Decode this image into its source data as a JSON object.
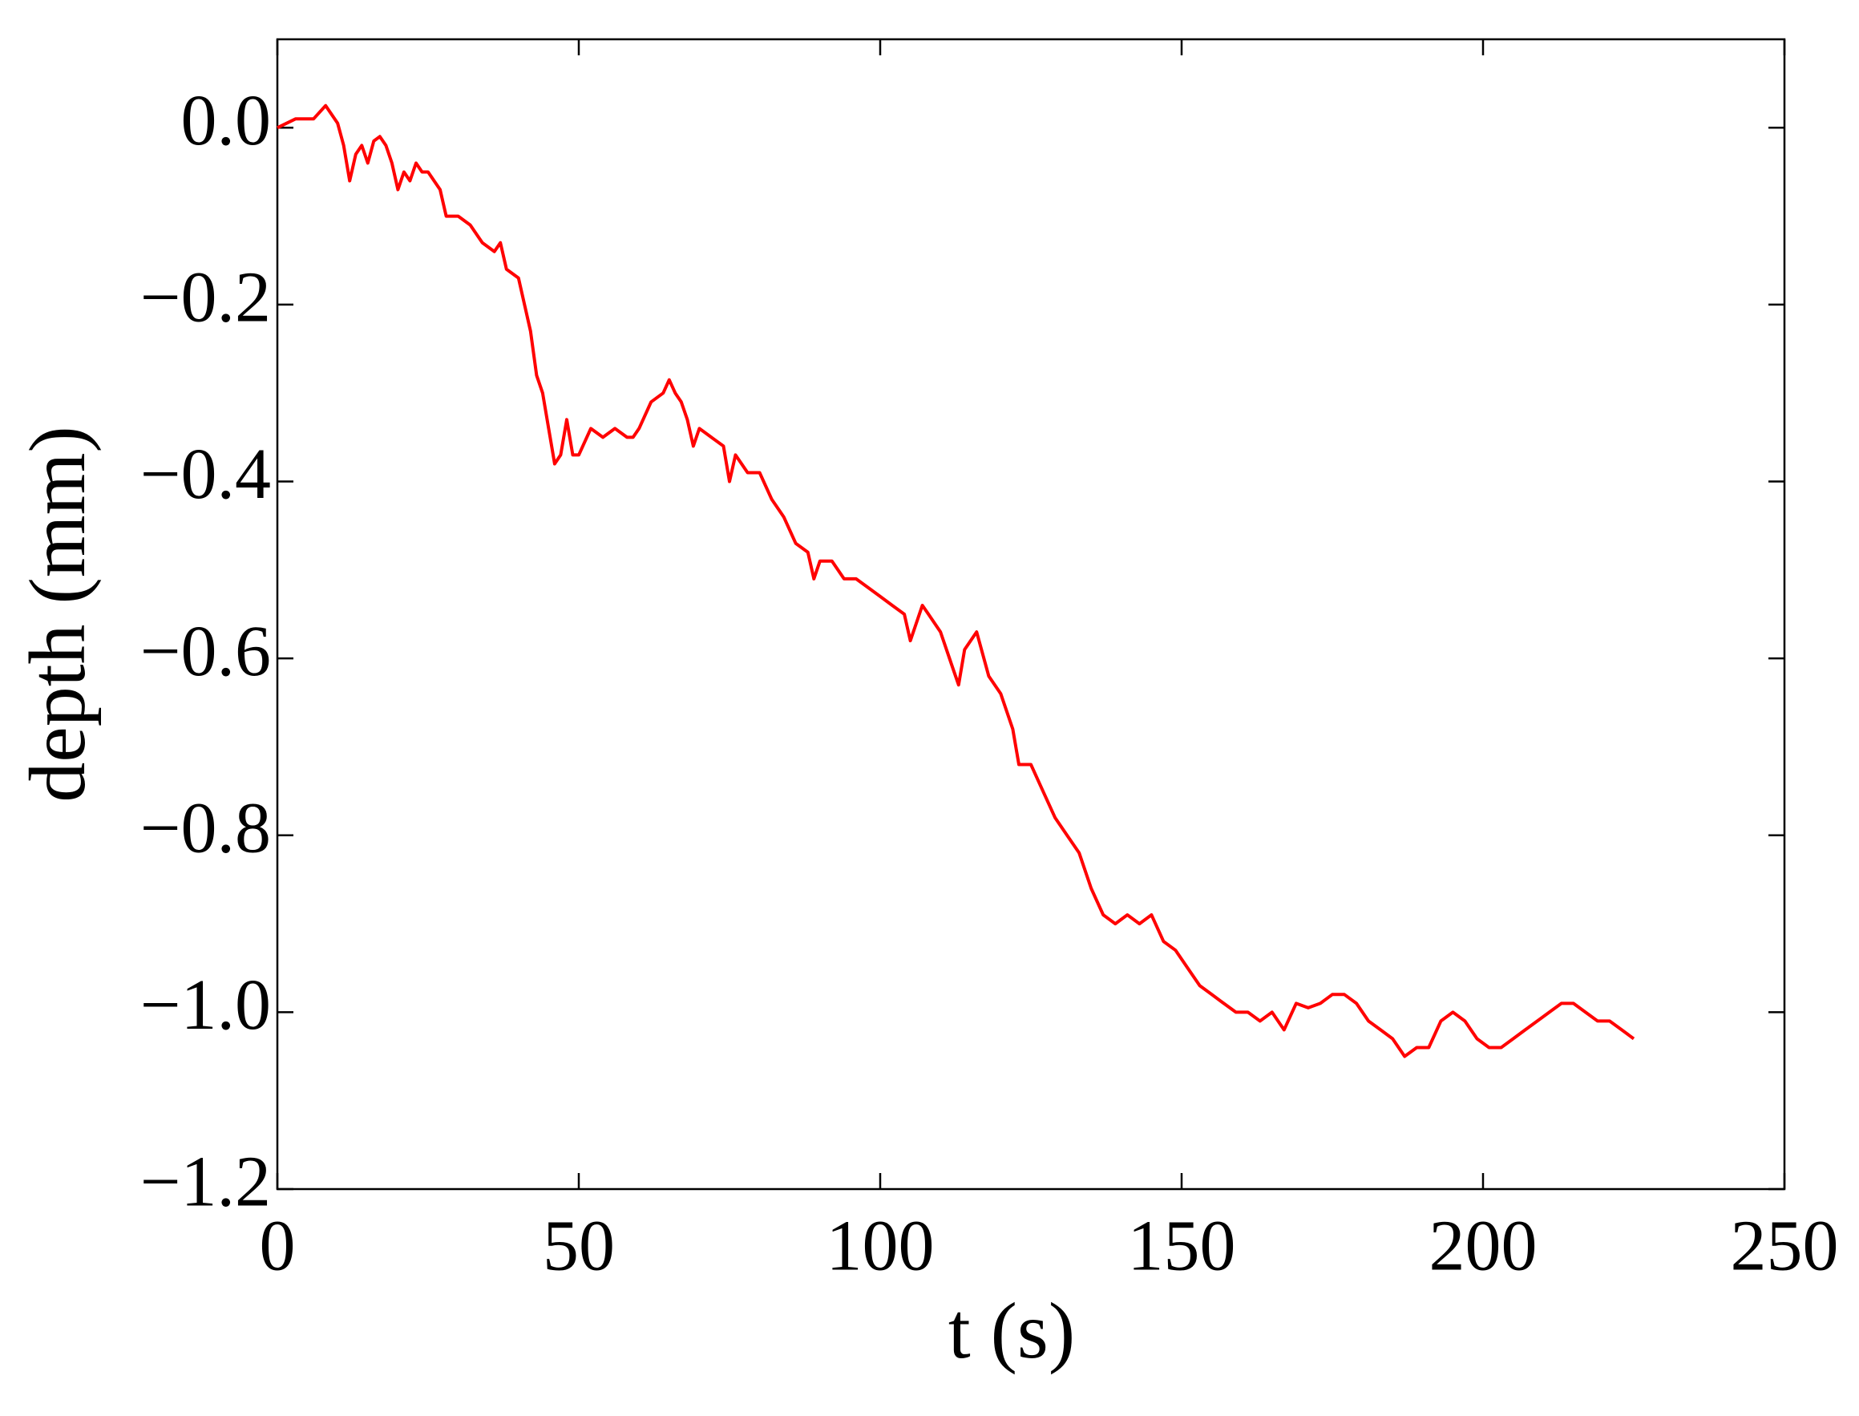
{
  "chart_data": {
    "type": "line",
    "xlabel": "t (s)",
    "ylabel": "depth (mm)",
    "xlim": [
      0,
      250
    ],
    "ylim": [
      -1.2,
      0.1
    ],
    "xticks": [
      0,
      50,
      100,
      150,
      200,
      250
    ],
    "yticks": [
      {
        "value": -1.2,
        "label": "−1.2"
      },
      {
        "value": -1.0,
        "label": "−1.0"
      },
      {
        "value": -0.8,
        "label": "−0.8"
      },
      {
        "value": -0.6,
        "label": "−0.6"
      },
      {
        "value": -0.4,
        "label": "−0.4"
      },
      {
        "value": -0.2,
        "label": "−0.2"
      },
      {
        "value": 0,
        "label": "0.0"
      }
    ],
    "x": [
      0,
      3,
      6,
      8,
      10,
      11,
      12,
      13,
      14,
      15,
      16,
      17,
      18,
      19,
      20,
      21,
      22,
      23,
      24,
      25,
      26,
      27,
      28,
      30,
      32,
      34,
      36,
      37,
      38,
      40,
      41,
      42,
      43,
      44,
      45,
      46,
      47,
      48,
      49,
      50,
      52,
      54,
      56,
      58,
      59,
      60,
      62,
      64,
      65,
      66,
      67,
      68,
      69,
      70,
      72,
      74,
      75,
      76,
      78,
      80,
      82,
      84,
      86,
      88,
      89,
      90,
      92,
      94,
      96,
      98,
      100,
      102,
      104,
      105,
      107,
      108,
      110,
      112,
      113,
      114,
      116,
      118,
      120,
      122,
      123,
      125,
      127,
      129,
      131,
      133,
      135,
      137,
      139,
      141,
      143,
      145,
      147,
      149,
      151,
      153,
      155,
      157,
      159,
      161,
      163,
      165,
      167,
      169,
      171,
      173,
      175,
      177,
      179,
      181,
      183,
      185,
      187,
      189,
      191,
      193,
      195,
      197,
      199,
      201,
      203,
      205,
      207,
      209,
      211,
      213,
      215,
      217,
      219,
      221,
      223,
      225
    ],
    "series": [
      {
        "color": "#ff0000",
        "values": [
          0.0,
          0.01,
          0.01,
          0.025,
          0.005,
          -0.02,
          -0.06,
          -0.03,
          -0.02,
          -0.04,
          -0.015,
          -0.01,
          -0.02,
          -0.04,
          -0.07,
          -0.05,
          -0.06,
          -0.04,
          -0.05,
          -0.05,
          -0.06,
          -0.07,
          -0.1,
          -0.1,
          -0.11,
          -0.13,
          -0.14,
          -0.13,
          -0.16,
          -0.17,
          -0.2,
          -0.23,
          -0.28,
          -0.3,
          -0.34,
          -0.38,
          -0.37,
          -0.33,
          -0.37,
          -0.37,
          -0.34,
          -0.35,
          -0.34,
          -0.35,
          -0.35,
          -0.34,
          -0.31,
          -0.3,
          -0.285,
          -0.3,
          -0.31,
          -0.33,
          -0.36,
          -0.34,
          -0.35,
          -0.36,
          -0.4,
          -0.37,
          -0.39,
          -0.39,
          -0.42,
          -0.44,
          -0.47,
          -0.48,
          -0.51,
          -0.49,
          -0.49,
          -0.51,
          -0.51,
          -0.52,
          -0.53,
          -0.54,
          -0.55,
          -0.58,
          -0.54,
          -0.55,
          -0.57,
          -0.61,
          -0.63,
          -0.59,
          -0.57,
          -0.62,
          -0.64,
          -0.68,
          -0.72,
          -0.72,
          -0.75,
          -0.78,
          -0.8,
          -0.82,
          -0.86,
          -0.89,
          -0.9,
          -0.89,
          -0.9,
          -0.89,
          -0.92,
          -0.93,
          -0.95,
          -0.97,
          -0.98,
          -0.99,
          -1.0,
          -1.0,
          -1.01,
          -1.0,
          -1.02,
          -0.99,
          -0.995,
          -0.99,
          -0.98,
          -0.98,
          -0.99,
          -1.01,
          -1.02,
          -1.03,
          -1.05,
          -1.04,
          -1.04,
          -1.01,
          -1.0,
          -1.01,
          -1.03,
          -1.04,
          -1.04,
          -1.03,
          -1.02,
          -1.01,
          -1.0,
          -0.99,
          -0.99,
          -1.0,
          -1.01,
          -1.01,
          -1.02,
          -1.03
        ]
      }
    ]
  }
}
